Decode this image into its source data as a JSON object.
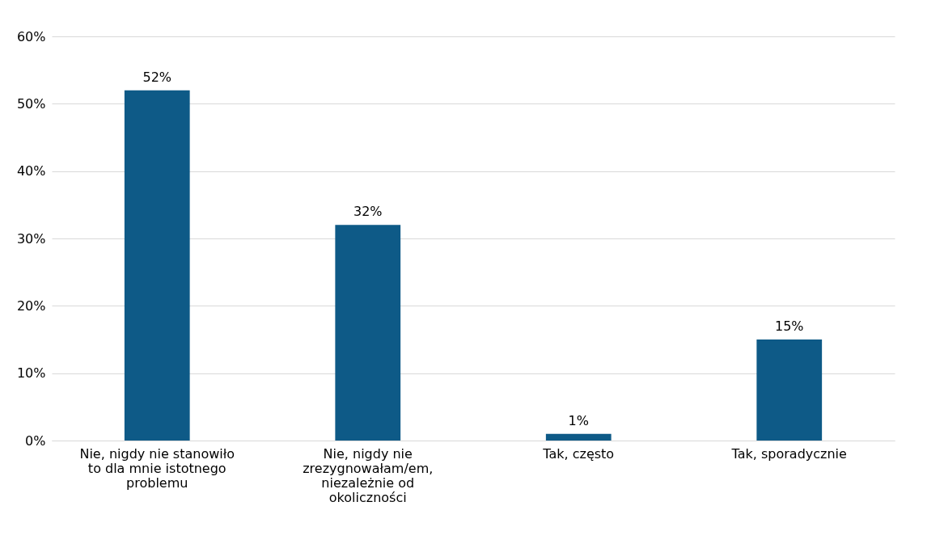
{
  "chart_data": {
    "type": "bar",
    "categories": [
      "Nie, nigdy nie stanowiło to dla mnie istotnego problemu",
      "Nie, nigdy nie zrezygnowałam/em, niezależnie od okoliczności",
      "Tak, często",
      "Tak, sporadycznie"
    ],
    "values": [
      52,
      32,
      1,
      15
    ],
    "value_labels": [
      "52%",
      "32%",
      "1%",
      "15%"
    ],
    "color": "#0e5a87",
    "ylim": [
      0,
      60
    ],
    "yticks": [
      {
        "value": 0,
        "label": "0%"
      },
      {
        "value": 10,
        "label": "10%"
      },
      {
        "value": 20,
        "label": "20%"
      },
      {
        "value": 30,
        "label": "30%"
      },
      {
        "value": 40,
        "label": "40%"
      },
      {
        "value": 50,
        "label": "50%"
      },
      {
        "value": 60,
        "label": "60%"
      }
    ],
    "grid": "y"
  }
}
